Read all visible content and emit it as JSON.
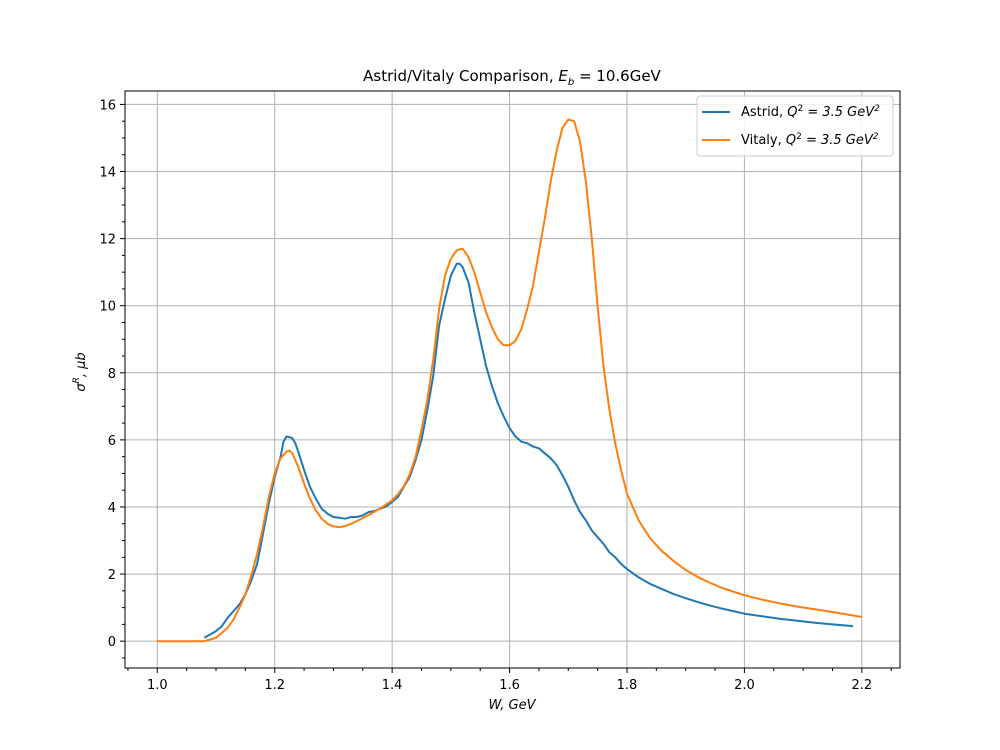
{
  "chart_data": {
    "type": "line",
    "title": "Astrid/Vitaly Comparison, E_b = 10.6GeV",
    "title_parts": {
      "prefix": "Astrid/Vitaly Comparison, ",
      "math": "E",
      "sub": "b",
      "suffix": " = 10.6GeV"
    },
    "xlabel": "W, GeV",
    "ylabel": "σR, μb",
    "ylabel_parts": {
      "sigma": "σ",
      "sup": "R",
      "rest": ", μb"
    },
    "xlim": [
      0.945,
      2.265
    ],
    "ylim": [
      -0.8,
      16.4
    ],
    "xticks": [
      1.0,
      1.2,
      1.4,
      1.6,
      1.8,
      2.0,
      2.2
    ],
    "xtick_labels": [
      "1.0",
      "1.2",
      "1.4",
      "1.6",
      "1.8",
      "2.0",
      "2.2"
    ],
    "yticks": [
      0,
      2,
      4,
      6,
      8,
      10,
      12,
      14,
      16
    ],
    "ytick_labels": [
      "0",
      "2",
      "4",
      "6",
      "8",
      "10",
      "12",
      "14",
      "16"
    ],
    "grid": true,
    "legend_position": "top-right",
    "series": [
      {
        "name": "Astrid, Q2 = 3.5 GeV2",
        "name_parts": {
          "prefix": "Astrid, ",
          "q": "Q",
          "qsup": "2",
          "mid": " = 3.5 GeV",
          "gsup": "2"
        },
        "color": "#1f77b4",
        "x": [
          1.08,
          1.09,
          1.1,
          1.11,
          1.12,
          1.13,
          1.14,
          1.15,
          1.16,
          1.17,
          1.18,
          1.19,
          1.2,
          1.205,
          1.21,
          1.215,
          1.22,
          1.225,
          1.23,
          1.235,
          1.24,
          1.25,
          1.26,
          1.27,
          1.28,
          1.29,
          1.3,
          1.31,
          1.32,
          1.33,
          1.34,
          1.35,
          1.36,
          1.37,
          1.38,
          1.39,
          1.4,
          1.41,
          1.42,
          1.43,
          1.44,
          1.45,
          1.46,
          1.47,
          1.48,
          1.49,
          1.5,
          1.51,
          1.515,
          1.52,
          1.53,
          1.54,
          1.55,
          1.56,
          1.57,
          1.58,
          1.59,
          1.6,
          1.61,
          1.62,
          1.63,
          1.64,
          1.65,
          1.66,
          1.67,
          1.68,
          1.69,
          1.7,
          1.71,
          1.72,
          1.73,
          1.74,
          1.75,
          1.76,
          1.77,
          1.78,
          1.79,
          1.8,
          1.82,
          1.84,
          1.86,
          1.88,
          1.9,
          1.92,
          1.94,
          1.96,
          1.98,
          2.0,
          2.03,
          2.06,
          2.09,
          2.12,
          2.15,
          2.185
        ],
        "y": [
          0.1,
          0.2,
          0.3,
          0.45,
          0.7,
          0.9,
          1.1,
          1.4,
          1.8,
          2.3,
          3.2,
          4.1,
          4.9,
          5.2,
          5.5,
          5.95,
          6.1,
          6.08,
          6.05,
          5.9,
          5.65,
          5.1,
          4.6,
          4.25,
          3.95,
          3.8,
          3.7,
          3.68,
          3.65,
          3.7,
          3.7,
          3.75,
          3.85,
          3.88,
          3.95,
          4.02,
          4.15,
          4.3,
          4.6,
          4.9,
          5.4,
          6.0,
          6.9,
          7.9,
          9.4,
          10.2,
          10.9,
          11.25,
          11.25,
          11.15,
          10.7,
          9.8,
          9.0,
          8.2,
          7.6,
          7.1,
          6.7,
          6.35,
          6.1,
          5.95,
          5.9,
          5.8,
          5.75,
          5.6,
          5.45,
          5.25,
          4.95,
          4.6,
          4.2,
          3.85,
          3.6,
          3.3,
          3.1,
          2.9,
          2.65,
          2.5,
          2.3,
          2.15,
          1.9,
          1.7,
          1.55,
          1.4,
          1.28,
          1.17,
          1.07,
          0.98,
          0.9,
          0.82,
          0.74,
          0.67,
          0.61,
          0.55,
          0.5,
          0.45
        ]
      },
      {
        "name": "Vitaly, Q2 = 3.5 GeV2",
        "name_parts": {
          "prefix": "Vitaly, ",
          "q": "Q",
          "qsup": "2",
          "mid": " = 3.5 GeV",
          "gsup": "2"
        },
        "color": "#ff7f0e",
        "x": [
          1.0,
          1.02,
          1.04,
          1.06,
          1.08,
          1.09,
          1.1,
          1.11,
          1.12,
          1.13,
          1.14,
          1.15,
          1.16,
          1.17,
          1.18,
          1.19,
          1.2,
          1.21,
          1.22,
          1.225,
          1.23,
          1.24,
          1.25,
          1.26,
          1.27,
          1.28,
          1.29,
          1.3,
          1.31,
          1.32,
          1.33,
          1.34,
          1.35,
          1.36,
          1.37,
          1.38,
          1.39,
          1.4,
          1.41,
          1.42,
          1.43,
          1.44,
          1.45,
          1.46,
          1.47,
          1.48,
          1.49,
          1.5,
          1.51,
          1.52,
          1.53,
          1.54,
          1.55,
          1.56,
          1.57,
          1.58,
          1.59,
          1.6,
          1.61,
          1.62,
          1.63,
          1.64,
          1.65,
          1.66,
          1.67,
          1.68,
          1.69,
          1.7,
          1.71,
          1.72,
          1.73,
          1.74,
          1.75,
          1.76,
          1.77,
          1.78,
          1.79,
          1.8,
          1.82,
          1.84,
          1.86,
          1.88,
          1.9,
          1.92,
          1.94,
          1.96,
          1.98,
          2.0,
          2.03,
          2.06,
          2.09,
          2.12,
          2.15,
          2.2
        ],
        "y": [
          0,
          0,
          0,
          0,
          0,
          0.05,
          0.1,
          0.25,
          0.4,
          0.65,
          1.0,
          1.4,
          1.95,
          2.6,
          3.4,
          4.3,
          5.0,
          5.45,
          5.65,
          5.68,
          5.6,
          5.2,
          4.7,
          4.25,
          3.9,
          3.65,
          3.5,
          3.42,
          3.4,
          3.43,
          3.5,
          3.58,
          3.67,
          3.76,
          3.86,
          3.96,
          4.08,
          4.2,
          4.38,
          4.62,
          4.98,
          5.5,
          6.3,
          7.2,
          8.4,
          9.9,
          10.9,
          11.4,
          11.65,
          11.7,
          11.45,
          11.0,
          10.4,
          9.8,
          9.35,
          9.0,
          8.82,
          8.82,
          8.95,
          9.3,
          9.9,
          10.6,
          11.6,
          12.6,
          13.7,
          14.6,
          15.3,
          15.55,
          15.5,
          14.9,
          13.7,
          12.0,
          10.0,
          8.2,
          6.9,
          5.9,
          5.1,
          4.4,
          3.6,
          3.05,
          2.68,
          2.38,
          2.12,
          1.92,
          1.75,
          1.6,
          1.48,
          1.37,
          1.24,
          1.13,
          1.03,
          0.95,
          0.87,
          0.72
        ]
      }
    ]
  }
}
